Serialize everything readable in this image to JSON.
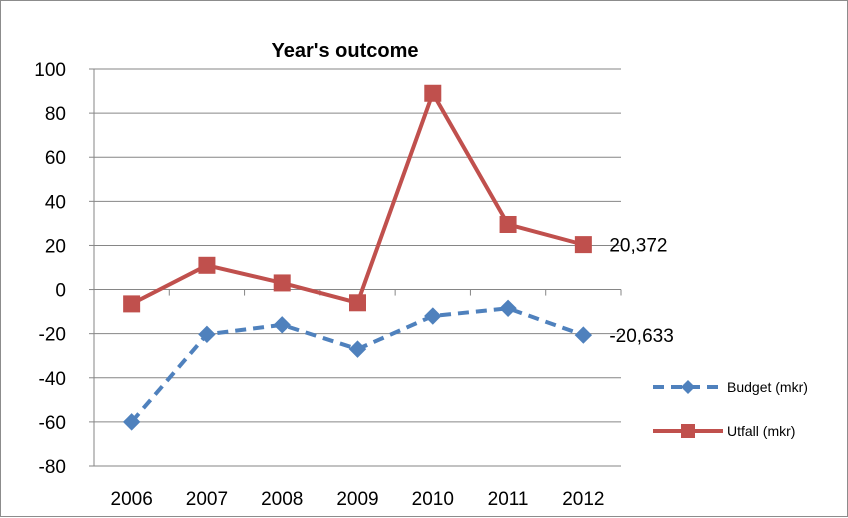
{
  "chart_data": {
    "type": "line",
    "title": "Year's outcome",
    "xlabel": "",
    "ylabel": "",
    "categories": [
      "2006",
      "2007",
      "2008",
      "2009",
      "2010",
      "2011",
      "2012"
    ],
    "ylim": [
      -80,
      100
    ],
    "yticks": [
      100,
      80,
      60,
      40,
      20,
      0,
      -20,
      -40,
      -60,
      -80
    ],
    "grid": true,
    "legend_position": "right",
    "series": [
      {
        "name": "Budget (mkr)",
        "values": [
          -60,
          -20.3,
          -16,
          -27,
          -12,
          -8.5,
          -20.633
        ],
        "color": "#4f81bd",
        "line_style": "dashed",
        "marker": "diamond",
        "last_label": "-20,633"
      },
      {
        "name": "Utfall (mkr)",
        "values": [
          -6.5,
          11,
          3,
          -6,
          89,
          29.5,
          20.372
        ],
        "color": "#c0504d",
        "line_style": "solid",
        "marker": "square",
        "last_label": "20,372"
      }
    ]
  }
}
